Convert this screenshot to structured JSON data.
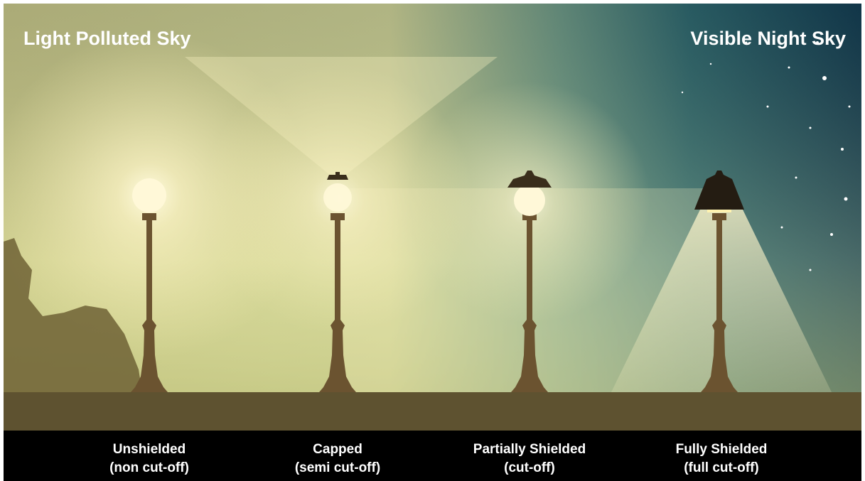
{
  "header": {
    "left": "Light Polluted Sky",
    "right": "Visible Night Sky"
  },
  "lamps": [
    {
      "name": "Unshielded",
      "detail": "(non cut-off)"
    },
    {
      "name": "Capped",
      "detail": "(semi cut-off)"
    },
    {
      "name": "Partially Shielded",
      "detail": "(cut-off)"
    },
    {
      "name": "Fully Shielded",
      "detail": "(full cut-off)"
    }
  ]
}
